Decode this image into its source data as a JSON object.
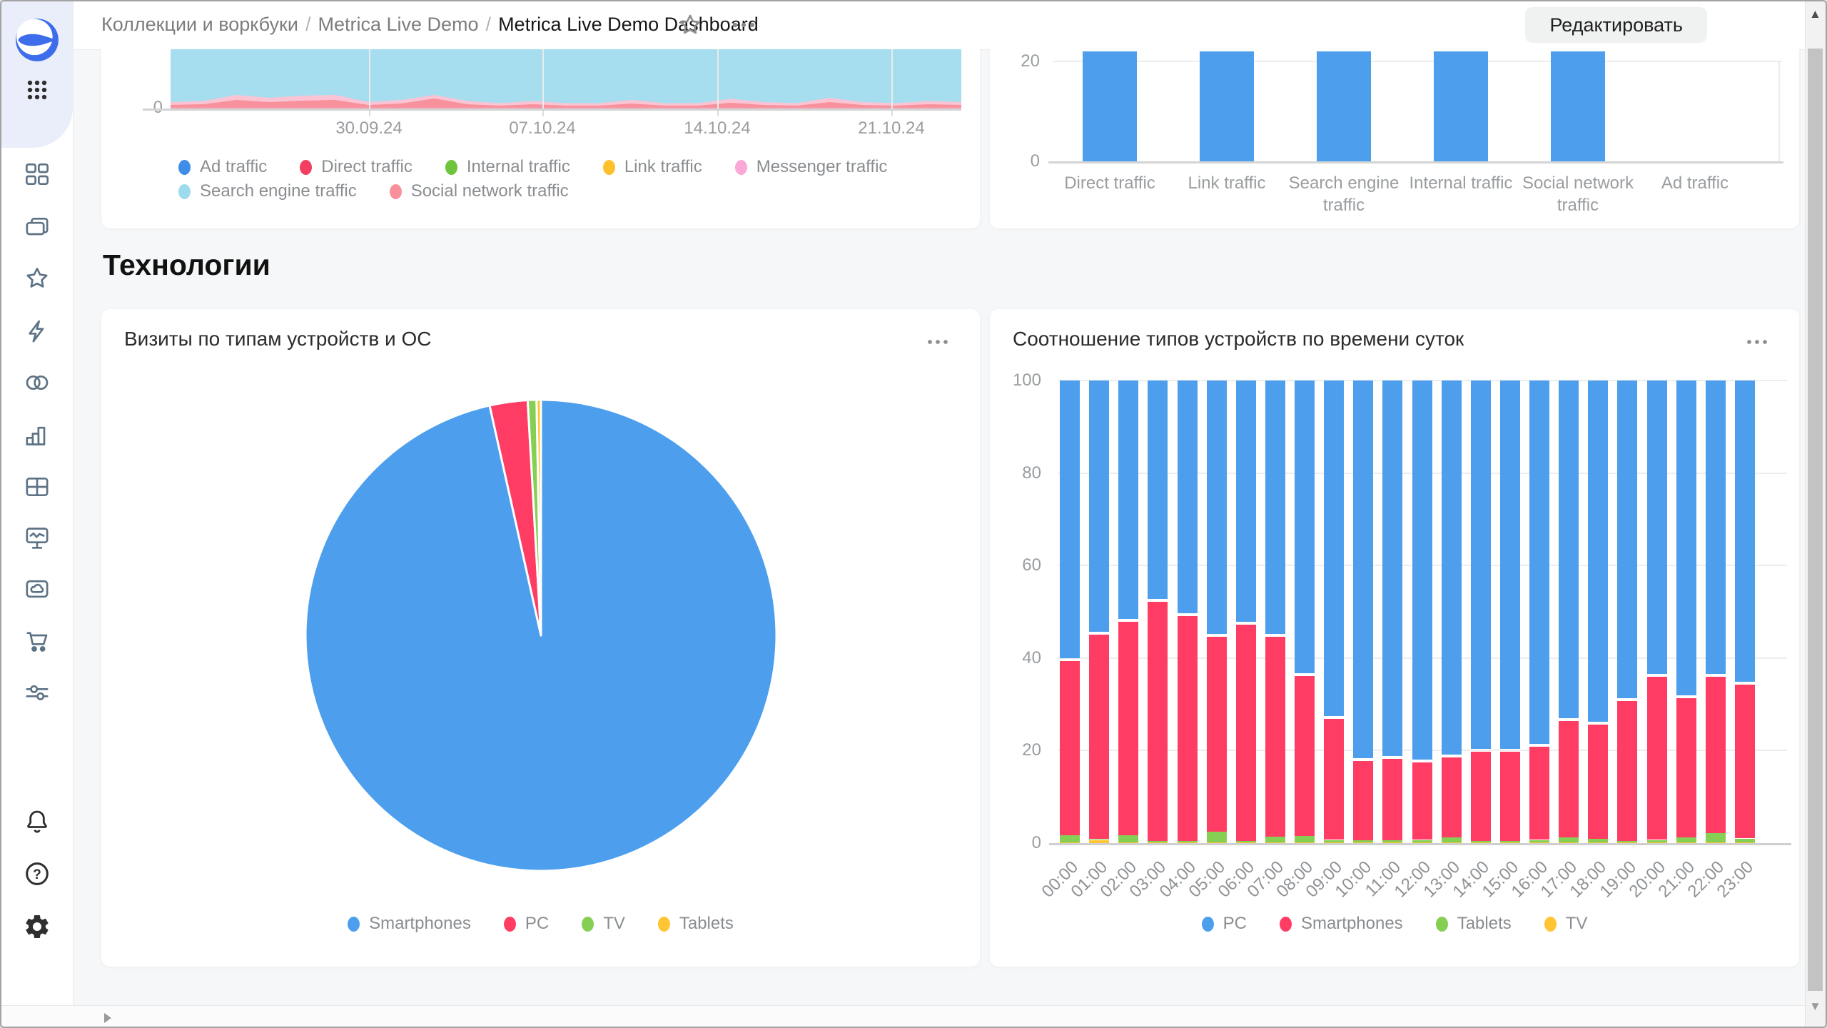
{
  "breadcrumbs": {
    "items": [
      "Коллекции и воркбуки",
      "Metrica Live Demo",
      "Metrica Live Demo Dashboard"
    ],
    "separator": "/"
  },
  "header": {
    "edit_button": "Редактировать"
  },
  "sidebar": {
    "icons": [
      "datalens-logo",
      "apps-grid",
      "dashboards",
      "collections",
      "favorites",
      "editor",
      "connections",
      "charts",
      "tables",
      "monitoring",
      "storage",
      "marketplace",
      "services",
      "notifications",
      "help",
      "settings",
      "expand-panel"
    ]
  },
  "section": {
    "title": "Технологии"
  },
  "cards": {
    "traffic_over_time": {
      "y_zero": "0",
      "x_labels": [
        "30.09.24",
        "07.10.24",
        "14.10.24",
        "21.10.24"
      ],
      "legend": [
        {
          "label": "Ad traffic",
          "color": "#3E8DE8"
        },
        {
          "label": "Direct traffic",
          "color": "#F23E61"
        },
        {
          "label": "Internal traffic",
          "color": "#6EC53C"
        },
        {
          "label": "Link traffic",
          "color": "#FFC02E"
        },
        {
          "label": "Messenger traffic",
          "color": "#F9A8D7"
        },
        {
          "label": "Search engine traffic",
          "color": "#9FDBEF"
        },
        {
          "label": "Social network traffic",
          "color": "#F8919B"
        }
      ]
    },
    "traffic_by_source": {
      "y_labels": [
        "20",
        "0"
      ],
      "bar_color": "#4D9FED"
    },
    "devices_pie": {
      "title": "Визиты по типам устройств и ОС",
      "menu": "...",
      "legend": [
        {
          "label": "Smartphones",
          "color": "#4D9FED"
        },
        {
          "label": "PC",
          "color": "#FF3D64"
        },
        {
          "label": "TV",
          "color": "#85CF54"
        },
        {
          "label": "Tablets",
          "color": "#FFC533"
        }
      ]
    },
    "devices_by_hour": {
      "title": "Соотношение типов устройств по времени суток",
      "menu": "...",
      "legend": [
        {
          "label": "PC",
          "color": "#4D9FED"
        },
        {
          "label": "Smartphones",
          "color": "#FF3D64"
        },
        {
          "label": "Tablets",
          "color": "#85CF54"
        },
        {
          "label": "TV",
          "color": "#FFC533"
        }
      ]
    }
  },
  "scrollbar": {
    "up_arrow": "▲",
    "down_arrow": "▼"
  },
  "chart_data": [
    {
      "id": "traffic-over-time",
      "type": "area",
      "x_tick_labels": [
        "30.09.24",
        "07.10.24",
        "14.10.24",
        "21.10.24"
      ],
      "y_tick_labels": [
        "0"
      ],
      "note": "Top of the chart is scrolled out of view; Search engine traffic area fills the whole visible height",
      "series": [
        {
          "name": "Search engine traffic",
          "color": "#A6DEF0",
          "values_visible": "clipped-top"
        },
        {
          "name": "Social network traffic",
          "color": "#F8919B",
          "relative_profile": [
            4,
            5,
            11,
            8,
            10,
            11,
            4,
            6,
            13,
            5,
            3,
            5,
            3,
            3,
            6,
            3,
            3,
            7,
            4,
            3,
            8,
            4,
            3,
            5,
            4
          ]
        },
        {
          "name": "Messenger traffic",
          "color": "#FAC4D4",
          "relative_profile": [
            8,
            9.5,
            18,
            14,
            17,
            18,
            8,
            11,
            18,
            9.5,
            6.5,
            9.5,
            6.5,
            6.5,
            11,
            6.5,
            6.5,
            12.5,
            8,
            6.5,
            14,
            8,
            6.5,
            9.5,
            8
          ]
        }
      ]
    },
    {
      "id": "traffic-by-source",
      "type": "bar",
      "categories": [
        "Direct traffic",
        "Link traffic",
        "Search engine traffic",
        "Internal traffic",
        "Social network traffic",
        "Ad traffic"
      ],
      "values": [
        22,
        22,
        22,
        22,
        22,
        0
      ],
      "visible_top_clipped": true,
      "y_ticks": [
        0,
        20
      ],
      "bar_color": "#4D9FED"
    },
    {
      "id": "visits-by-device-type",
      "type": "pie",
      "title": "Визиты по типам устройств и ОС",
      "labels": [
        "Smartphones",
        "PC",
        "TV",
        "Tablets"
      ],
      "values": [
        96.5,
        2.6,
        0.6,
        0.3
      ],
      "colors": [
        "#4D9FED",
        "#FF3D64",
        "#85CF54",
        "#FFC533"
      ],
      "legend_position": "bottom"
    },
    {
      "id": "device-share-by-hour",
      "type": "stacked-bar-100",
      "title": "Соотношение типов устройств по времени суток",
      "categories": [
        "00:00",
        "01:00",
        "02:00",
        "03:00",
        "04:00",
        "05:00",
        "06:00",
        "07:00",
        "08:00",
        "09:00",
        "10:00",
        "11:00",
        "12:00",
        "13:00",
        "14:00",
        "15:00",
        "16:00",
        "17:00",
        "18:00",
        "19:00",
        "20:00",
        "21:00",
        "22:00",
        "23:00"
      ],
      "y_ticks": [
        0,
        20,
        40,
        60,
        80,
        100
      ],
      "ylim": [
        0,
        100
      ],
      "legend_position": "bottom",
      "series": [
        {
          "name": "PC",
          "color": "#4D9FED",
          "values": [
            60.3,
            54.6,
            51.8,
            47.5,
            50.6,
            55.1,
            52.5,
            55.1,
            63.5,
            72.8,
            81.9,
            81.4,
            82.3,
            81.2,
            80.0,
            80.0,
            78.8,
            73.3,
            74.1,
            69.0,
            63.8,
            68.3,
            63.8,
            65.5
          ]
        },
        {
          "name": "Smartphones",
          "color": "#FF3D64",
          "values": [
            38,
            44.5,
            46.5,
            52,
            49,
            42.5,
            47,
            43.5,
            35,
            26.5,
            17.5,
            18,
            17,
            17.5,
            19.5,
            19.5,
            20.5,
            25.5,
            25,
            30.5,
            35.5,
            30.5,
            34,
            33.5
          ]
        },
        {
          "name": "Tablets",
          "color": "#85CF54",
          "values": [
            1.5,
            0.2,
            1.5,
            0.3,
            0.3,
            2.2,
            0.4,
            1.2,
            1.3,
            0.6,
            0.5,
            0.5,
            0.6,
            1.1,
            0.4,
            0.4,
            0.6,
            1.0,
            0.8,
            0.4,
            0.5,
            1.0,
            2.0,
            0.8
          ]
        },
        {
          "name": "TV",
          "color": "#FFC533",
          "values": [
            0.2,
            0.7,
            0.2,
            0.2,
            0.1,
            0.2,
            0.1,
            0.2,
            0.2,
            0.1,
            0.1,
            0.1,
            0.1,
            0.2,
            0.1,
            0.1,
            0.1,
            0.2,
            0.1,
            0.1,
            0.2,
            0.2,
            0.2,
            0.2
          ]
        }
      ]
    }
  ]
}
